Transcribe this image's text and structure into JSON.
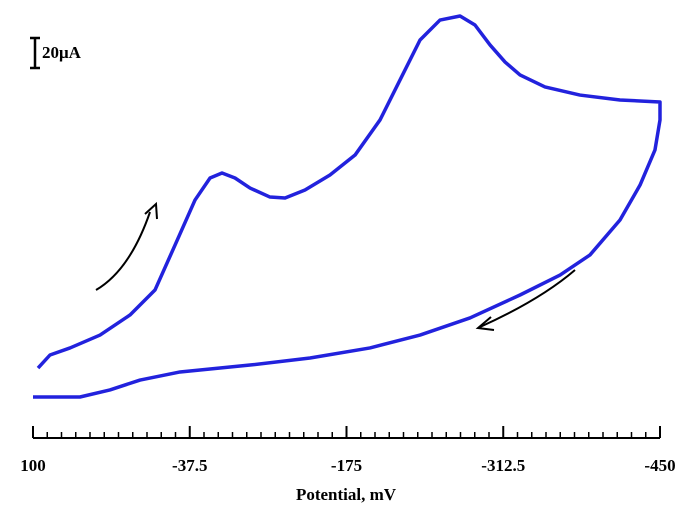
{
  "chart_data": {
    "type": "line",
    "xlabel": "Potential, mV",
    "scale_bar": {
      "value": 20,
      "label": "20μA"
    },
    "xlim": [
      100,
      -450
    ],
    "xticks": [
      100,
      -37.5,
      -175,
      -312.5,
      -450
    ],
    "ylim": [
      0,
      260
    ],
    "series": [
      {
        "color": "#2222dd",
        "x": [
          95.6,
          85.1,
          67.5,
          41.2,
          14.9,
          -7,
          -24.6,
          -42.1,
          -55.3,
          -65.8,
          -77.2,
          -90.4,
          -107.9,
          -121.1,
          -138.6,
          -160.5,
          -182.5,
          -204.4,
          -221.9,
          -239.5,
          -257,
          -274.6,
          -287.7,
          -300.9,
          -314.1,
          -327.2,
          -349.1,
          -379.8,
          -414.9,
          -450,
          -450,
          -445.6,
          -432.5,
          -414.9,
          -388.6,
          -362.3,
          -327.2,
          -283.3,
          -239.5,
          -195.6,
          -143,
          -90.4,
          -29,
          6.1,
          32.5,
          58.8,
          100
        ],
        "values": [
          21.3,
          30,
          34.7,
          43.3,
          56.7,
          73.3,
          103.3,
          133.3,
          148,
          151.3,
          148,
          141.3,
          135.3,
          134.7,
          140,
          150,
          163.3,
          186.7,
          213.3,
          240,
          253.3,
          256,
          250,
          236.7,
          225.3,
          216.7,
          208.7,
          203.3,
          200,
          198.7,
          186.7,
          166.7,
          143.3,
          120,
          96.7,
          83.3,
          70,
          54.7,
          43.3,
          34.7,
          28,
          23.3,
          18.7,
          13.3,
          6.7,
          2,
          2
        ]
      }
    ]
  }
}
